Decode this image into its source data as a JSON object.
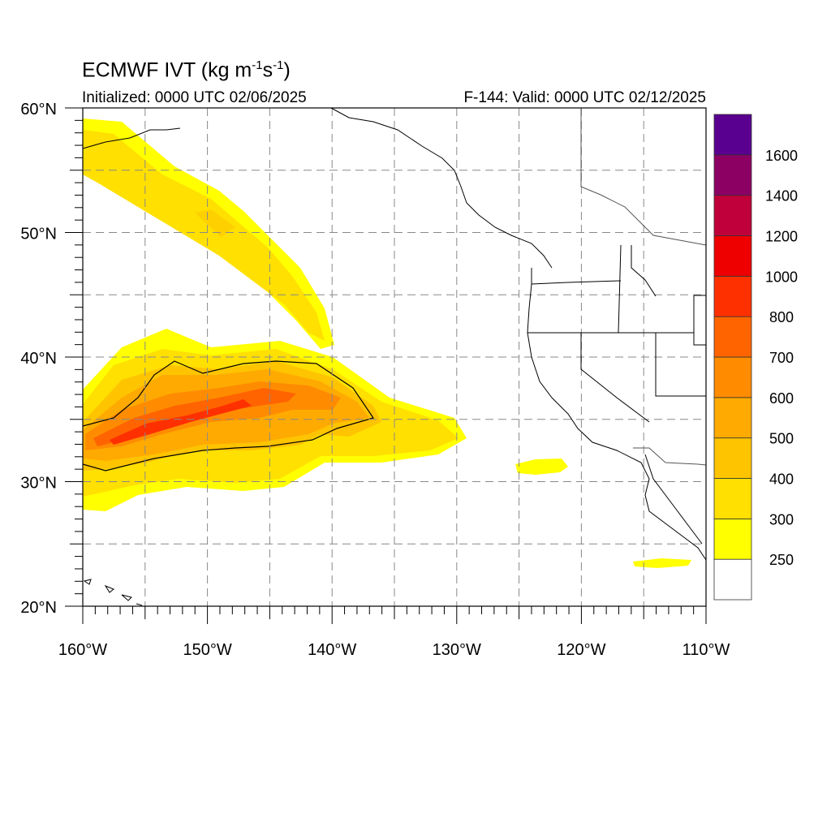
{
  "title": {
    "main": "ECMWF IVT (kg m",
    "exp1": "-1",
    "mid": "s",
    "exp2": "-1",
    "close": ")"
  },
  "init_label": "Initialized: 0000 UTC 02/06/2025",
  "valid_label": "F-144: Valid: 0000 UTC 02/12/2025",
  "map": {
    "lon_range": [
      -160,
      -110
    ],
    "lat_range": [
      20,
      60
    ],
    "lon_ticks": [
      -160,
      -150,
      -140,
      -130,
      -120,
      -110
    ],
    "lon_tick_labels": [
      "160°W",
      "150°W",
      "140°W",
      "130°W",
      "120°W",
      "110°W"
    ],
    "lat_ticks": [
      20,
      30,
      40,
      50,
      60
    ],
    "lat_tick_labels": [
      "20°N",
      "30°N",
      "40°N",
      "50°N",
      "60°N"
    ],
    "grid_spacing_deg": 5,
    "grid": "dashed"
  },
  "colorbar": {
    "labels": [
      "250",
      "300",
      "400",
      "500",
      "600",
      "700",
      "800",
      "1000",
      "1200",
      "1400",
      "1600"
    ],
    "colors": [
      "#ffffff",
      "#ffff00",
      "#ffe000",
      "#ffc400",
      "#ffaa00",
      "#ff8c00",
      "#ff6400",
      "#ff3000",
      "#ee0000",
      "#c0003a",
      "#8c0064",
      "#5a0090"
    ]
  }
}
